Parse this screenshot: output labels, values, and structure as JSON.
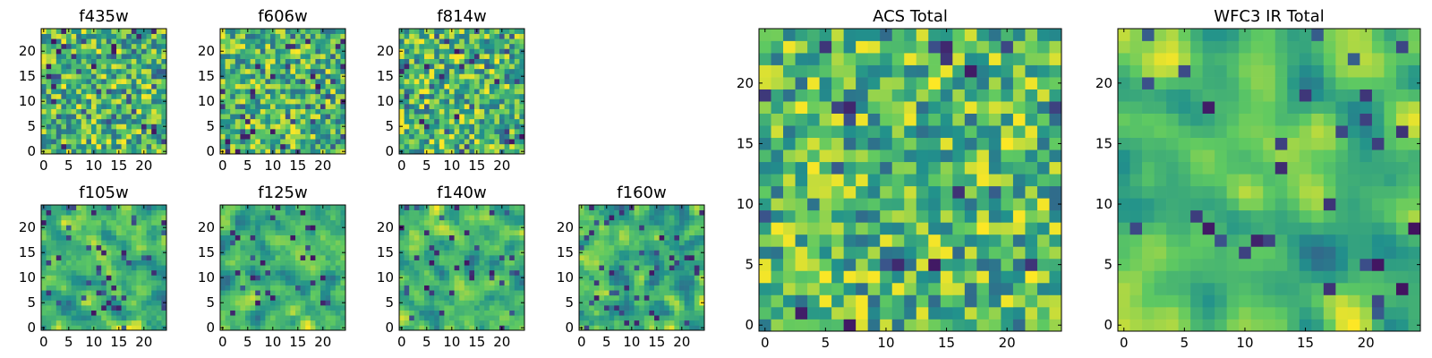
{
  "figure": {
    "description": "Grid of 9 image panels (heatmaps) showing per-filter noise maps and totals"
  },
  "colormap": {
    "name": "viridis",
    "stops": [
      "#440154",
      "#3b528b",
      "#21918c",
      "#5ec962",
      "#fde725"
    ]
  },
  "chart_data": [
    {
      "type": "heatmap",
      "title": "f435w",
      "grid_size": [
        25,
        25
      ],
      "xticks": [
        0,
        5,
        10,
        15,
        20
      ],
      "yticks": [
        0,
        5,
        10,
        15,
        20
      ],
      "xlim": [
        -0.5,
        24.5
      ],
      "ylim": [
        -0.5,
        24.5
      ],
      "value_range": [
        0,
        1
      ],
      "seed": 435,
      "smoothing": 0,
      "low_fraction": 0.06
    },
    {
      "type": "heatmap",
      "title": "f606w",
      "grid_size": [
        25,
        25
      ],
      "xticks": [
        0,
        5,
        10,
        15,
        20
      ],
      "yticks": [
        0,
        5,
        10,
        15,
        20
      ],
      "xlim": [
        -0.5,
        24.5
      ],
      "ylim": [
        -0.5,
        24.5
      ],
      "value_range": [
        0,
        1
      ],
      "seed": 606,
      "smoothing": 0,
      "low_fraction": 0.07
    },
    {
      "type": "heatmap",
      "title": "f814w",
      "grid_size": [
        25,
        25
      ],
      "xticks": [
        0,
        5,
        10,
        15,
        20
      ],
      "yticks": [
        0,
        5,
        10,
        15,
        20
      ],
      "xlim": [
        -0.5,
        24.5
      ],
      "ylim": [
        -0.5,
        24.5
      ],
      "value_range": [
        0,
        1
      ],
      "seed": 814,
      "smoothing": 0,
      "low_fraction": 0.05
    },
    {
      "type": "heatmap",
      "title": "f105w",
      "grid_size": [
        25,
        25
      ],
      "xticks": [
        0,
        5,
        10,
        15,
        20
      ],
      "yticks": [
        0,
        5,
        10,
        15,
        20
      ],
      "xlim": [
        -0.5,
        24.5
      ],
      "ylim": [
        -0.5,
        24.5
      ],
      "value_range": [
        0,
        1
      ],
      "seed": 105,
      "smoothing": 1,
      "low_fraction": 0.06
    },
    {
      "type": "heatmap",
      "title": "f125w",
      "grid_size": [
        25,
        25
      ],
      "xticks": [
        0,
        5,
        10,
        15,
        20
      ],
      "yticks": [
        0,
        5,
        10,
        15,
        20
      ],
      "xlim": [
        -0.5,
        24.5
      ],
      "ylim": [
        -0.5,
        24.5
      ],
      "value_range": [
        0,
        1
      ],
      "seed": 125,
      "smoothing": 1,
      "low_fraction": 0.05
    },
    {
      "type": "heatmap",
      "title": "f140w",
      "grid_size": [
        25,
        25
      ],
      "xticks": [
        0,
        5,
        10,
        15,
        20
      ],
      "yticks": [
        0,
        5,
        10,
        15,
        20
      ],
      "xlim": [
        -0.5,
        24.5
      ],
      "ylim": [
        -0.5,
        24.5
      ],
      "value_range": [
        0,
        1
      ],
      "seed": 140,
      "smoothing": 1,
      "low_fraction": 0.06
    },
    {
      "type": "heatmap",
      "title": "f160w",
      "grid_size": [
        25,
        25
      ],
      "xticks": [
        0,
        5,
        10,
        15,
        20
      ],
      "yticks": [
        0,
        5,
        10,
        15,
        20
      ],
      "xlim": [
        -0.5,
        24.5
      ],
      "ylim": [
        -0.5,
        24.5
      ],
      "value_range": [
        0,
        1
      ],
      "seed": 160,
      "smoothing": 1,
      "low_fraction": 0.06
    },
    {
      "type": "heatmap",
      "title": "ACS Total",
      "grid_size": [
        25,
        25
      ],
      "xticks": [
        0,
        5,
        10,
        15,
        20
      ],
      "yticks": [
        0,
        5,
        10,
        15,
        20
      ],
      "xlim": [
        -0.5,
        24.5
      ],
      "ylim": [
        -0.5,
        24.5
      ],
      "value_range": [
        0,
        1
      ],
      "seed": 901,
      "smoothing": 0,
      "low_fraction": 0.04
    },
    {
      "type": "heatmap",
      "title": "WFC3 IR Total",
      "grid_size": [
        25,
        25
      ],
      "xticks": [
        0,
        5,
        10,
        15,
        20
      ],
      "yticks": [
        0,
        5,
        10,
        15,
        20
      ],
      "xlim": [
        -0.5,
        24.5
      ],
      "ylim": [
        -0.5,
        24.5
      ],
      "value_range": [
        0,
        1
      ],
      "seed": 902,
      "smoothing": 2,
      "low_fraction": 0.04
    }
  ]
}
